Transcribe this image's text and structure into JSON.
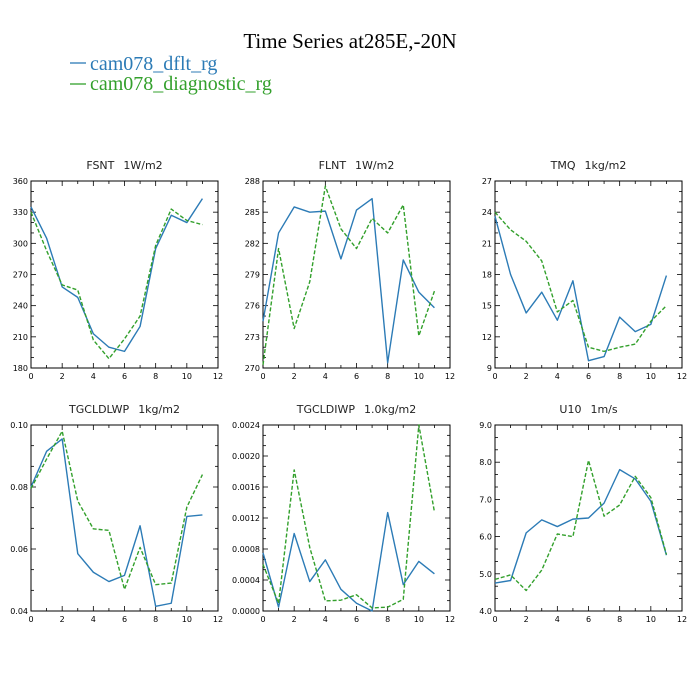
{
  "figure": {
    "title": "Time Series at285E,-20N",
    "legend": [
      {
        "label": "cam078_dflt_rg",
        "color": "#2c7bb6",
        "dash": "solid"
      },
      {
        "label": "cam078_diagnostic_rg",
        "color": "#33a02c",
        "dash": "dashed"
      }
    ]
  },
  "chart_data": [
    {
      "type": "line",
      "title": "FSNT",
      "unit": "1W/m2",
      "x": [
        0,
        1,
        2,
        3,
        4,
        5,
        6,
        7,
        8,
        9,
        10,
        11
      ],
      "xlim": [
        0,
        12
      ],
      "xticks": [
        0,
        2,
        4,
        6,
        8,
        10,
        12
      ],
      "ylim": [
        180,
        360
      ],
      "yticks": [
        180,
        210,
        240,
        270,
        300,
        330,
        360
      ],
      "ytick_labels": [
        "180",
        "210",
        "240",
        "270",
        "300",
        "330",
        "360"
      ],
      "series": [
        {
          "name": "cam078_dflt_rg",
          "values": [
            335,
            305,
            258,
            248,
            213,
            200,
            196,
            220,
            295,
            327,
            320,
            343
          ]
        },
        {
          "name": "cam078_diagnostic_rg",
          "values": [
            330,
            293,
            260,
            255,
            207,
            189,
            208,
            230,
            298,
            333,
            322,
            318
          ]
        }
      ]
    },
    {
      "type": "line",
      "title": "FLNT",
      "unit": "1W/m2",
      "x": [
        0,
        1,
        2,
        3,
        4,
        5,
        6,
        7,
        8,
        9,
        10,
        11
      ],
      "xlim": [
        0,
        12
      ],
      "xticks": [
        0,
        2,
        4,
        6,
        8,
        10,
        12
      ],
      "ylim": [
        270,
        288
      ],
      "yticks": [
        270,
        273,
        276,
        279,
        282,
        285,
        288
      ],
      "ytick_labels": [
        "270",
        "273",
        "276",
        "279",
        "282",
        "285",
        "288"
      ],
      "series": [
        {
          "name": "cam078_dflt_rg",
          "values": [
            274.5,
            283.0,
            285.5,
            285.0,
            285.1,
            280.5,
            285.2,
            286.3,
            270.5,
            280.4,
            277.3,
            275.8
          ]
        },
        {
          "name": "cam078_diagnostic_rg",
          "values": [
            270.3,
            281.5,
            273.8,
            278.3,
            287.5,
            283.4,
            281.5,
            284.4,
            283.0,
            285.7,
            273.1,
            277.4
          ]
        }
      ]
    },
    {
      "type": "line",
      "title": "TMQ",
      "unit": "1kg/m2",
      "x": [
        0,
        1,
        2,
        3,
        4,
        5,
        6,
        7,
        8,
        9,
        10,
        11
      ],
      "xlim": [
        0,
        12
      ],
      "xticks": [
        0,
        2,
        4,
        6,
        8,
        10,
        12
      ],
      "ylim": [
        9,
        27
      ],
      "yticks": [
        9,
        12,
        15,
        18,
        21,
        24,
        27
      ],
      "ytick_labels": [
        "9",
        "12",
        "15",
        "18",
        "21",
        "24",
        "27"
      ],
      "series": [
        {
          "name": "cam078_dflt_rg",
          "values": [
            23.6,
            18.0,
            14.3,
            16.3,
            13.6,
            17.4,
            9.7,
            10.1,
            13.9,
            12.5,
            13.2,
            17.9
          ]
        },
        {
          "name": "cam078_diagnostic_rg",
          "values": [
            24.0,
            22.3,
            21.2,
            19.3,
            14.4,
            15.5,
            11.0,
            10.6,
            11.0,
            11.3,
            13.5,
            15.0
          ]
        }
      ]
    },
    {
      "type": "line",
      "title": "TGCLDLWP",
      "unit": "1kg/m2",
      "x": [
        0,
        1,
        2,
        3,
        4,
        5,
        6,
        7,
        8,
        9,
        10,
        11
      ],
      "xlim": [
        0,
        12
      ],
      "xticks": [
        0,
        2,
        4,
        6,
        8,
        10,
        12
      ],
      "ylim": [
        0.04,
        0.1
      ],
      "yticks": [
        0.04,
        0.06,
        0.08,
        0.1
      ],
      "ytick_labels": [
        "0.04",
        "0.06",
        "0.08",
        "0.10"
      ],
      "series": [
        {
          "name": "cam078_dflt_rg",
          "values": [
            0.08,
            0.0915,
            0.0955,
            0.0585,
            0.0525,
            0.0495,
            0.0515,
            0.0675,
            0.0415,
            0.0425,
            0.0705,
            0.071
          ]
        },
        {
          "name": "cam078_diagnostic_rg",
          "values": [
            0.0795,
            0.089,
            0.098,
            0.0755,
            0.0665,
            0.066,
            0.047,
            0.0605,
            0.0485,
            0.049,
            0.0735,
            0.084
          ]
        }
      ]
    },
    {
      "type": "line",
      "title": "TGCLDIWP",
      "unit": "1.0kg/m2",
      "x": [
        0,
        1,
        2,
        3,
        4,
        5,
        6,
        7,
        8,
        9,
        10,
        11
      ],
      "xlim": [
        0,
        12
      ],
      "xticks": [
        0,
        2,
        4,
        6,
        8,
        10,
        12
      ],
      "ylim": [
        0,
        0.0024
      ],
      "yticks": [
        0,
        0.0004,
        0.0008,
        0.0012,
        0.0016,
        0.002,
        0.0024
      ],
      "ytick_labels": [
        "0.0000",
        "0.0004",
        "0.0008",
        "0.0012",
        "0.0016",
        "0.0020",
        "0.0024"
      ],
      "series": [
        {
          "name": "cam078_dflt_rg",
          "values": [
            0.00075,
            5e-05,
            0.001,
            0.00038,
            0.00066,
            0.00028,
            0.0001,
            0.0,
            0.00127,
            0.00034,
            0.00064,
            0.00048
          ]
        },
        {
          "name": "cam078_diagnostic_rg",
          "values": [
            0.0006,
            0.0001,
            0.00182,
            0.00082,
            0.00013,
            0.00014,
            0.00021,
            4e-05,
            5e-05,
            0.00015,
            0.0024,
            0.00128
          ]
        }
      ]
    },
    {
      "type": "line",
      "title": "U10",
      "unit": "1m/s",
      "x": [
        0,
        1,
        2,
        3,
        4,
        5,
        6,
        7,
        8,
        9,
        10,
        11
      ],
      "xlim": [
        0,
        12
      ],
      "xticks": [
        0,
        2,
        4,
        6,
        8,
        10,
        12
      ],
      "ylim": [
        4.0,
        9.0
      ],
      "yticks": [
        4,
        5,
        6,
        7,
        8,
        9
      ],
      "ytick_labels": [
        "4.0",
        "5.0",
        "6.0",
        "7.0",
        "8.0",
        "9.0"
      ],
      "series": [
        {
          "name": "cam078_dflt_rg",
          "values": [
            4.75,
            4.82,
            6.1,
            6.45,
            6.27,
            6.47,
            6.5,
            6.9,
            7.8,
            7.55,
            6.95,
            5.5
          ]
        },
        {
          "name": "cam078_diagnostic_rg",
          "values": [
            4.85,
            4.97,
            4.55,
            5.1,
            6.07,
            6.0,
            8.05,
            6.55,
            6.85,
            7.62,
            7.05,
            5.52
          ]
        }
      ]
    }
  ]
}
